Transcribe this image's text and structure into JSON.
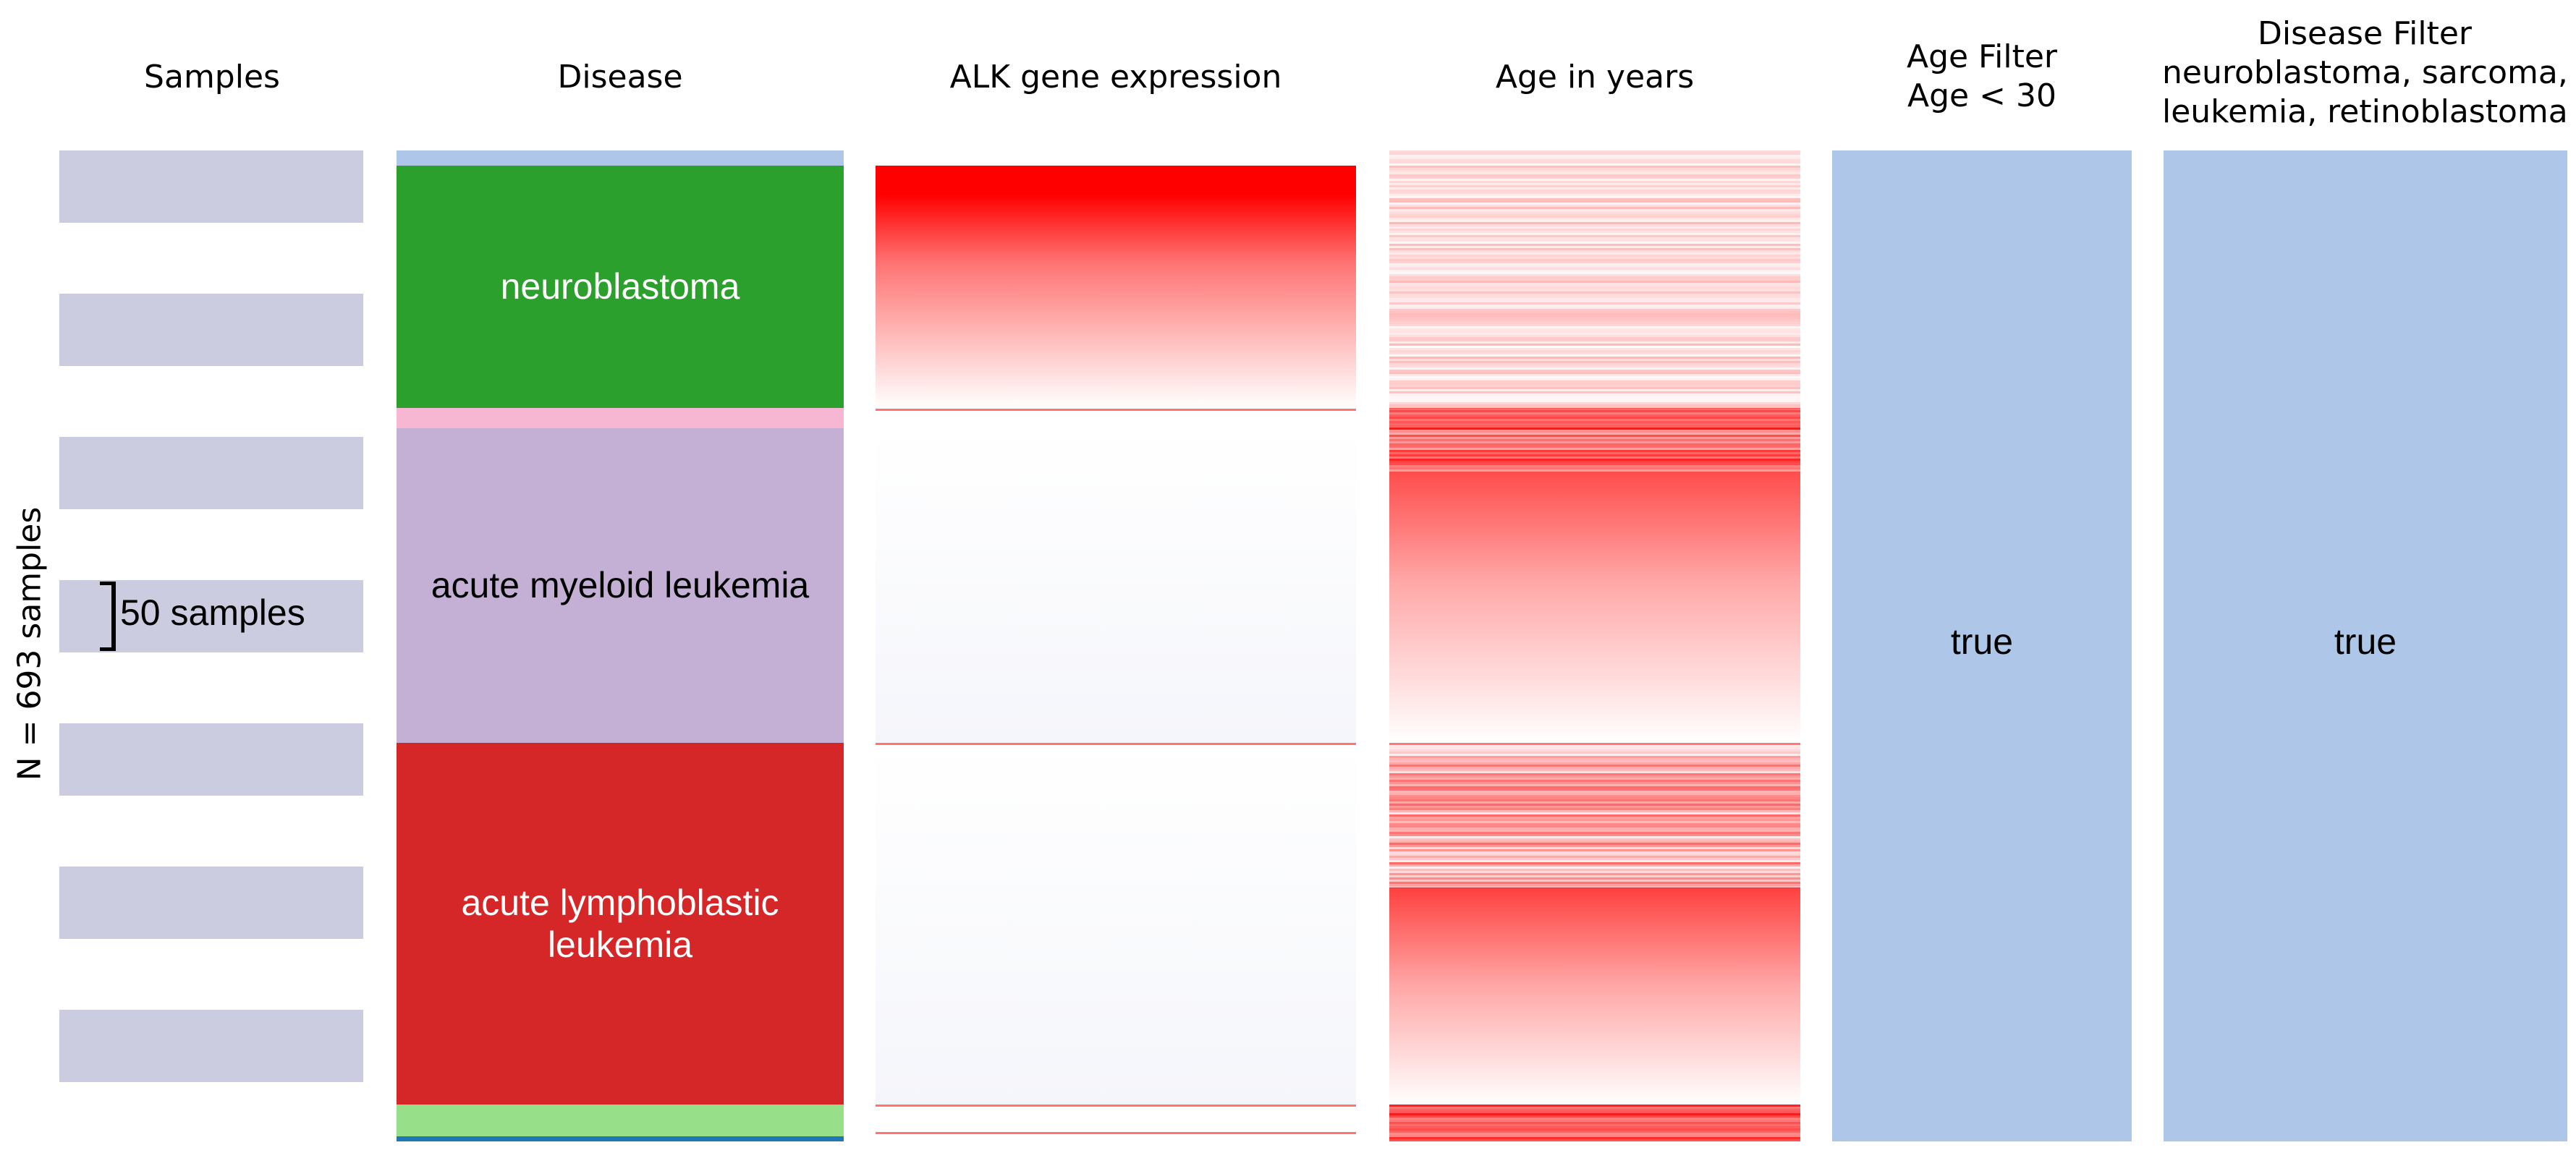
{
  "headers": {
    "samples": "Samples",
    "disease": "Disease",
    "alk": "ALK gene expression",
    "age": "Age in years",
    "age_filter": [
      "Age Filter",
      "Age < 30"
    ],
    "disease_filter": [
      "Disease Filter",
      "neuroblastoma, sarcoma,",
      "leukemia, retinoblastoma"
    ]
  },
  "y_axis_label": "N = 693 samples",
  "scale_bar_label": "50 samples",
  "total_samples": 693,
  "samples_column": {
    "blocks": 7,
    "color": "#cccce0"
  },
  "disease_segments": [
    {
      "label": "",
      "color": "#aec7e8",
      "fraction": 0.015
    },
    {
      "label": "neuroblastoma",
      "color": "#2ca02c",
      "fraction": 0.245,
      "text_color": "#ffffff"
    },
    {
      "label": "",
      "color": "#f7b6d2",
      "fraction": 0.02
    },
    {
      "label": "acute myeloid leukemia",
      "color": "#c5b0d5",
      "fraction": 0.318,
      "text_color": "#000000"
    },
    {
      "label": "acute lymphoblastic leukemia",
      "label_lines": [
        "acute lymphoblastic",
        "leukemia"
      ],
      "color": "#d62728",
      "fraction": 0.365,
      "text_color": "#ffffff"
    },
    {
      "label": "",
      "color": "#98df8a",
      "fraction": 0.032
    },
    {
      "label": "",
      "color": "#1f77b4",
      "fraction": 0.005
    }
  ],
  "alk_expression": {
    "high_color": "#ff0000",
    "low_color": "#f5f6fb"
  },
  "age_column": {
    "color": "#ff0000"
  },
  "age_filter": {
    "value": "true",
    "color": "#aec7e8"
  },
  "disease_filter": {
    "value": "true",
    "color": "#aec7e8"
  }
}
